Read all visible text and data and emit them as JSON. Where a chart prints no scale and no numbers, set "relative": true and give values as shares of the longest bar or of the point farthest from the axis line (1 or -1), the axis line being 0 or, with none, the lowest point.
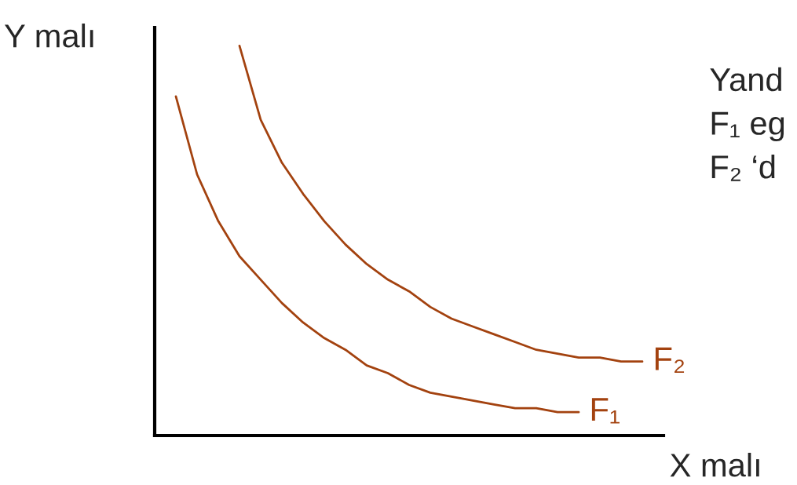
{
  "chart_data": {
    "type": "line",
    "relative": true,
    "xlabel": "X malı",
    "ylabel": "Y malı",
    "marker": "none",
    "line_style": "solid",
    "categories": [
      null,
      null,
      null,
      null,
      null,
      null,
      null,
      null,
      null,
      null,
      null,
      null,
      null,
      null,
      null,
      null,
      null,
      null,
      null,
      null,
      null,
      null,
      null,
      null,
      null
    ],
    "series": [
      {
        "name": "F₁",
        "color": "#a3420f",
        "values": [
          null,
          0.87,
          0.67,
          0.55,
          0.46,
          0.4,
          0.34,
          0.29,
          0.25,
          0.22,
          0.18,
          0.16,
          0.13,
          0.11,
          0.1,
          0.09,
          0.08,
          0.07,
          0.07,
          0.06,
          0.06,
          null,
          null,
          null,
          null
        ]
      },
      {
        "name": "F₂",
        "color": "#a3420f",
        "values": [
          null,
          null,
          null,
          null,
          1.0,
          0.81,
          0.7,
          0.62,
          0.55,
          0.49,
          0.44,
          0.4,
          0.37,
          0.33,
          0.3,
          0.28,
          0.26,
          0.24,
          0.22,
          0.21,
          0.2,
          0.2,
          0.19,
          0.19,
          null
        ]
      }
    ],
    "annotations": [
      "Yand",
      "F₁ eg",
      "F₂ ‘d"
    ]
  }
}
